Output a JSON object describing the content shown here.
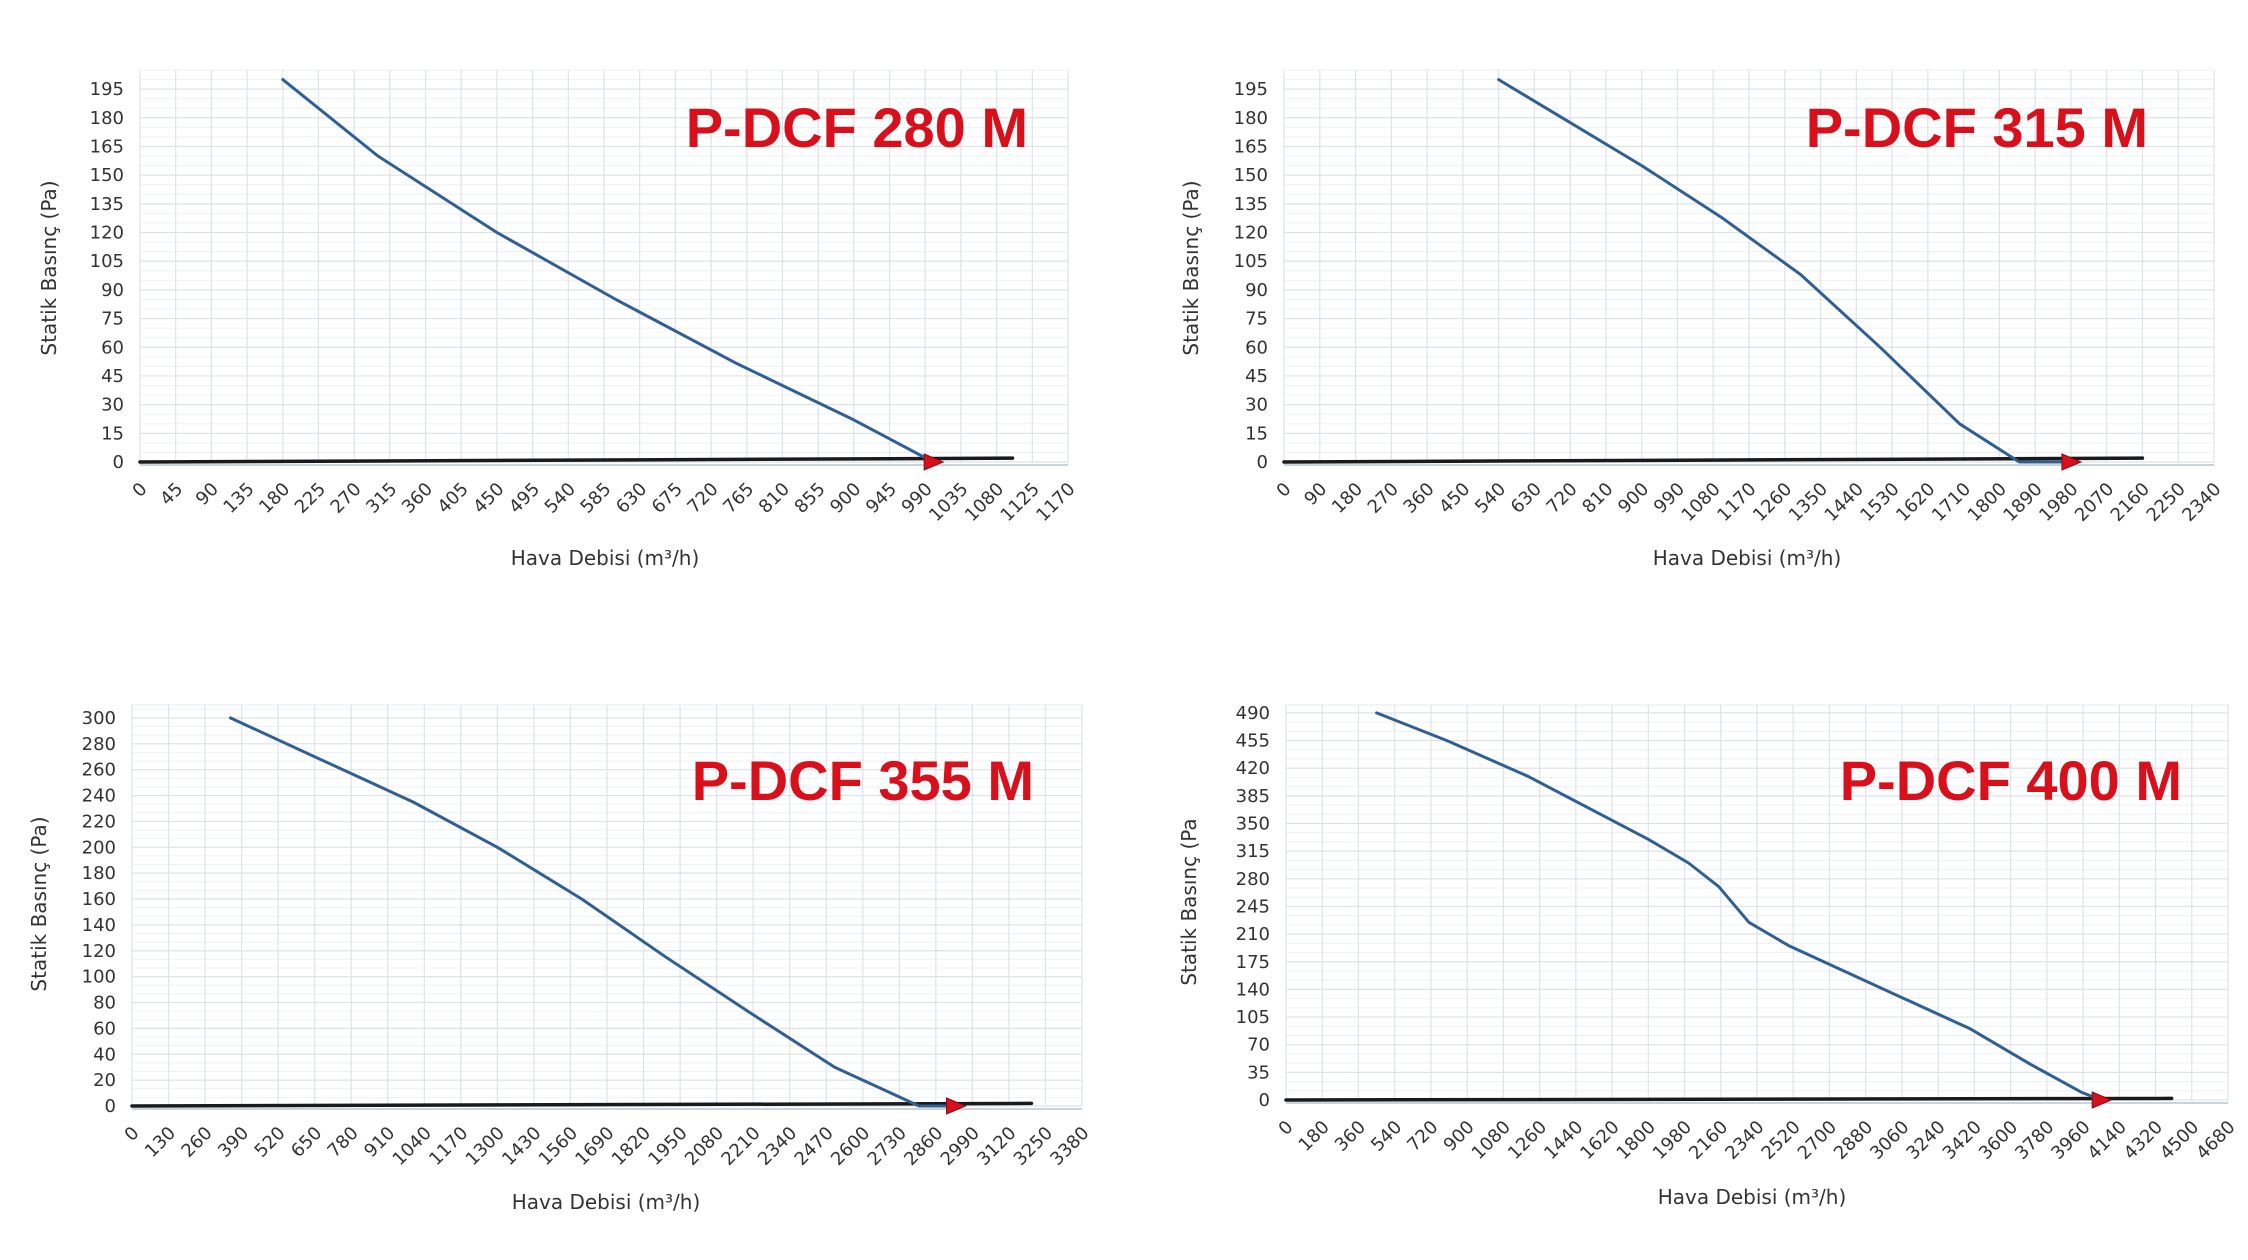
{
  "colors": {
    "curve": "#2f5f95",
    "baseline": "#1a1a1a",
    "marker": "#d8101c",
    "title": "#d8101c",
    "grid": "#dde3ea"
  },
  "chart_data": [
    {
      "type": "line",
      "title": "P-DCF 280 M",
      "xlabel": "Hava Debisi (m³/h)",
      "ylabel": "Statik Basınç (Pa)",
      "xticks": [
        0,
        45,
        90,
        135,
        180,
        225,
        270,
        315,
        360,
        405,
        450,
        495,
        540,
        585,
        630,
        675,
        720,
        765,
        810,
        855,
        900,
        945,
        990,
        1035,
        1080,
        1125,
        1170
      ],
      "yticks": [
        0,
        15,
        30,
        45,
        60,
        75,
        90,
        105,
        120,
        135,
        150,
        165,
        180,
        195
      ],
      "xlim": [
        0,
        1170
      ],
      "ylim": [
        0,
        205
      ],
      "grid": true,
      "series": [
        {
          "x": [
            180,
            300,
            450,
            600,
            750,
            900,
            1000
          ],
          "y": [
            200,
            160,
            120,
            85,
            52,
            22,
            0
          ]
        }
      ],
      "baseline": {
        "x": [
          0,
          1100
        ],
        "y": [
          0,
          2
        ]
      },
      "marker": {
        "x": 1000,
        "y": 0
      }
    },
    {
      "type": "line",
      "title": "P-DCF 315 M",
      "xlabel": "Hava Debisi (m³/h)",
      "ylabel": "Statik Basınç (Pa)",
      "xticks": [
        0,
        90,
        180,
        270,
        360,
        450,
        540,
        630,
        720,
        810,
        900,
        990,
        1080,
        1170,
        1260,
        1350,
        1440,
        1530,
        1620,
        1710,
        1800,
        1890,
        1980,
        2070,
        2160,
        2250,
        2340
      ],
      "yticks": [
        0,
        15,
        30,
        45,
        60,
        75,
        90,
        105,
        120,
        135,
        150,
        165,
        180,
        195
      ],
      "xlim": [
        0,
        2340
      ],
      "ylim": [
        0,
        205
      ],
      "grid": true,
      "series": [
        {
          "x": [
            540,
            700,
            900,
            1100,
            1300,
            1500,
            1700,
            1850,
            1980
          ],
          "y": [
            200,
            180,
            155,
            128,
            98,
            60,
            20,
            0,
            0
          ]
        }
      ],
      "baseline": {
        "x": [
          0,
          2160
        ],
        "y": [
          0,
          2
        ]
      },
      "marker": {
        "x": 1980,
        "y": 0
      }
    },
    {
      "type": "line",
      "title": "P-DCF 355 M",
      "xlabel": "Hava Debisi (m³/h)",
      "ylabel": "Statik Basınç (Pa)",
      "xticks": [
        0,
        130,
        260,
        390,
        520,
        650,
        780,
        910,
        1040,
        1170,
        1300,
        1430,
        1560,
        1690,
        1820,
        1950,
        2080,
        2210,
        2340,
        2470,
        2600,
        2730,
        2860,
        2990,
        3120,
        3250,
        3380
      ],
      "yticks": [
        0,
        20,
        40,
        60,
        80,
        100,
        120,
        140,
        160,
        180,
        200,
        220,
        240,
        260,
        280,
        300
      ],
      "xlim": [
        0,
        3380
      ],
      "ylim": [
        0,
        310
      ],
      "grid": true,
      "series": [
        {
          "x": [
            350,
            700,
            1000,
            1300,
            1600,
            1900,
            2200,
            2500,
            2800,
            2930
          ],
          "y": [
            300,
            265,
            235,
            200,
            160,
            115,
            72,
            30,
            0,
            0
          ]
        }
      ],
      "baseline": {
        "x": [
          0,
          3200
        ],
        "y": [
          0,
          2
        ]
      },
      "marker": {
        "x": 2930,
        "y": 0
      }
    },
    {
      "type": "line",
      "title": "P-DCF 400 M",
      "xlabel": "Hava Debisi (m³/h)",
      "ylabel": "Statik Basınç (Pa",
      "xticks": [
        0,
        180,
        360,
        540,
        720,
        900,
        1080,
        1260,
        1440,
        1620,
        1800,
        1980,
        2160,
        2340,
        2520,
        2700,
        2880,
        3060,
        3240,
        3420,
        3600,
        3780,
        3960,
        4140,
        4320,
        4500,
        4680
      ],
      "yticks": [
        0,
        35,
        70,
        105,
        140,
        175,
        210,
        245,
        280,
        315,
        350,
        385,
        420,
        455,
        490
      ],
      "xlim": [
        0,
        4680
      ],
      "ylim": [
        0,
        500
      ],
      "grid": true,
      "series": [
        {
          "x": [
            450,
            800,
            1200,
            1500,
            1800,
            2000,
            2150,
            2300,
            2500,
            2800,
            3100,
            3400,
            3700,
            3950,
            4050
          ],
          "y": [
            490,
            455,
            410,
            370,
            330,
            300,
            270,
            225,
            195,
            160,
            125,
            90,
            45,
            10,
            0
          ]
        }
      ],
      "baseline": {
        "x": [
          0,
          4400
        ],
        "y": [
          0,
          2
        ]
      },
      "marker": {
        "x": 4050,
        "y": 0
      }
    }
  ]
}
